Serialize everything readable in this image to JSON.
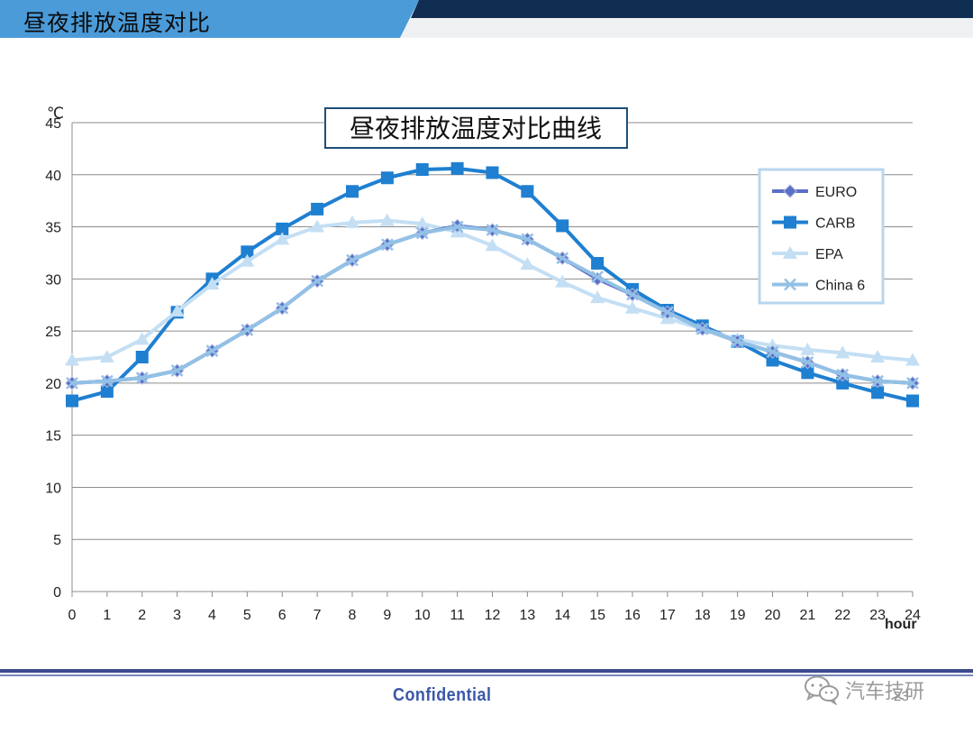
{
  "header": {
    "title": "昼夜排放温度对比"
  },
  "footer": {
    "confidential_label": "Confidential",
    "page_number": "23",
    "watermark_text": "汽车技研",
    "watermark_icon": "wechat-icon"
  },
  "colors": {
    "header_blue": "#4a9bd8",
    "header_navy": "#0f2e52",
    "footer_line": "#3b4a8c"
  },
  "chart_data": {
    "type": "line",
    "title": "昼夜排放温度对比曲线",
    "xlabel": "hour",
    "ylabel": "℃",
    "x": [
      0,
      1,
      2,
      3,
      4,
      5,
      6,
      7,
      8,
      9,
      10,
      11,
      12,
      13,
      14,
      15,
      16,
      17,
      18,
      19,
      20,
      21,
      22,
      23,
      24
    ],
    "xlim": [
      0,
      24
    ],
    "ylim": [
      0,
      45
    ],
    "yticks": [
      0,
      5,
      10,
      15,
      20,
      25,
      30,
      35,
      40,
      45
    ],
    "grid": true,
    "legend_position": "right",
    "series": [
      {
        "name": "EURO",
        "color": "#5b6fc7",
        "marker": "diamond",
        "values": [
          20.0,
          20.2,
          20.5,
          21.2,
          23.1,
          25.1,
          27.2,
          29.8,
          31.8,
          33.3,
          34.4,
          35.1,
          34.7,
          33.8,
          32.0,
          30.0,
          28.5,
          26.8,
          25.2,
          24.0,
          23.0,
          22.0,
          20.8,
          20.2,
          20.0
        ]
      },
      {
        "name": "CARB",
        "color": "#1f7fd1",
        "marker": "square",
        "values": [
          18.3,
          19.2,
          22.5,
          26.8,
          30.0,
          32.6,
          34.8,
          36.7,
          38.4,
          39.7,
          40.5,
          40.6,
          40.2,
          38.4,
          35.1,
          31.5,
          29.0,
          27.0,
          25.5,
          24.0,
          22.2,
          21.0,
          20.0,
          19.1,
          18.3
        ]
      },
      {
        "name": "EPA",
        "color": "#c4dff4",
        "marker": "triangle",
        "values": [
          22.2,
          22.5,
          24.2,
          26.9,
          29.5,
          31.7,
          33.8,
          35.0,
          35.4,
          35.6,
          35.3,
          34.5,
          33.2,
          31.4,
          29.7,
          28.2,
          27.2,
          26.2,
          25.2,
          24.2,
          23.6,
          23.2,
          22.9,
          22.5,
          22.2
        ]
      },
      {
        "name": "China 6",
        "color": "#93c1e6",
        "marker": "x",
        "values": [
          20.0,
          20.2,
          20.5,
          21.2,
          23.1,
          25.1,
          27.2,
          29.8,
          31.8,
          33.3,
          34.4,
          35.0,
          34.7,
          33.8,
          32.0,
          30.2,
          28.5,
          26.8,
          25.2,
          24.0,
          23.0,
          22.0,
          20.8,
          20.2,
          20.0
        ]
      }
    ]
  }
}
